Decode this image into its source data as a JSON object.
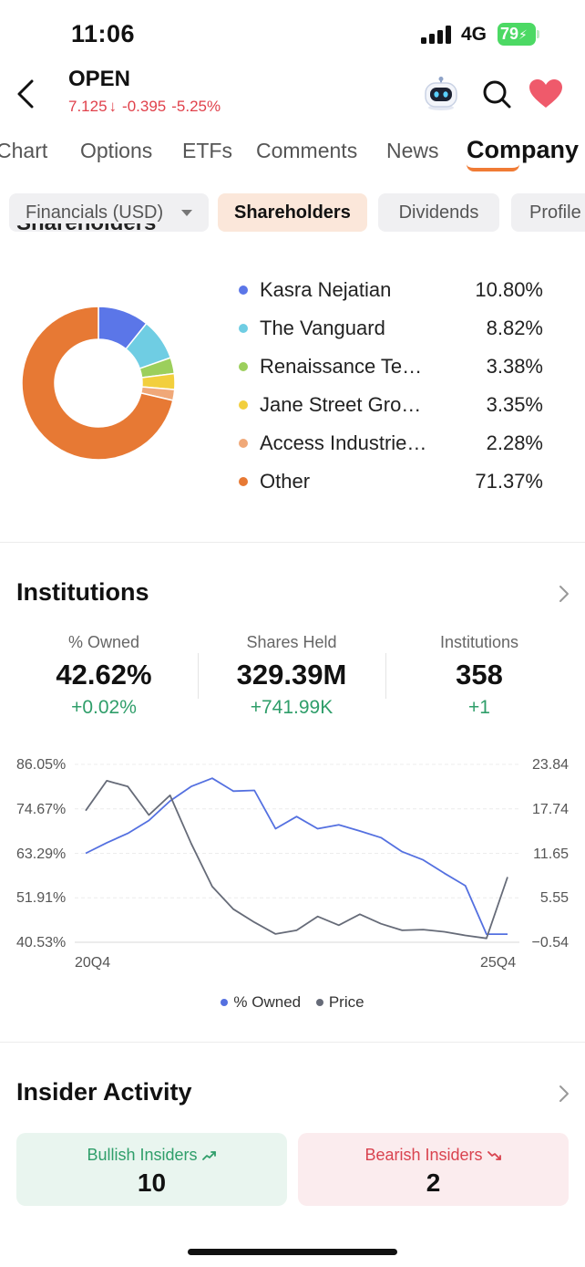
{
  "status_bar": {
    "time": "11:06",
    "network": "4G",
    "battery": "79"
  },
  "header": {
    "ticker": "OPEN",
    "price": "7.125",
    "arrow": "↓",
    "change": "-0.395",
    "change_pct": "-5.25%"
  },
  "tabs": [
    "Chart",
    "Options",
    "ETFs",
    "Comments",
    "News",
    "Company"
  ],
  "active_tab": "Company",
  "subtabs": {
    "financials": "Financials (USD)",
    "shareholders": "Shareholders",
    "dividends": "Dividends",
    "profile": "Profile"
  },
  "shareholders": {
    "heading": "Shareholders",
    "items": [
      {
        "name": "Kasra Nejatian",
        "pct": "10.80%",
        "value": 10.8,
        "color": "#5b76e8"
      },
      {
        "name": "The Vanguard",
        "pct": "8.82%",
        "value": 8.82,
        "color": "#6fcde3"
      },
      {
        "name": "Renaissance Te…",
        "pct": "3.38%",
        "value": 3.38,
        "color": "#9ccf5c"
      },
      {
        "name": "Jane Street Gro…",
        "pct": "3.35%",
        "value": 3.35,
        "color": "#f2cf3d"
      },
      {
        "name": "Access Industrie…",
        "pct": "2.28%",
        "value": 2.28,
        "color": "#f0a878"
      },
      {
        "name": "Other",
        "pct": "71.37%",
        "value": 71.37,
        "color": "#e77934"
      }
    ]
  },
  "institutions": {
    "title": "Institutions",
    "stats": [
      {
        "label": "% Owned",
        "value": "42.62%",
        "change": "+0.02%"
      },
      {
        "label": "Shares Held",
        "value": "329.39M",
        "change": "+741.99K"
      },
      {
        "label": "Institutions",
        "value": "358",
        "change": "+1"
      }
    ]
  },
  "chart_data": {
    "type": "line",
    "x_start": "20Q4",
    "x_end": "25Q4",
    "y_left_ticks": [
      "86.05%",
      "74.67%",
      "63.29%",
      "51.91%",
      "40.53%"
    ],
    "y_right_ticks": [
      "23.84",
      "17.74",
      "11.65",
      "5.55",
      "−0.54"
    ],
    "y_left_range": [
      40.53,
      86.05
    ],
    "y_right_range": [
      -0.54,
      23.84
    ],
    "series": [
      {
        "name": "% Owned",
        "color": "#5470e0",
        "axis": "left",
        "values": [
          63.3,
          66.0,
          68.4,
          71.7,
          76.7,
          80.4,
          82.5,
          79.2,
          79.4,
          69.6,
          72.7,
          69.6,
          70.6,
          69.0,
          67.3,
          63.7,
          61.6,
          58.2,
          55.0,
          42.6,
          42.6
        ]
      },
      {
        "name": "Price",
        "color": "#666b78",
        "axis": "right",
        "values": [
          17.5,
          21.6,
          20.8,
          16.9,
          19.6,
          13.0,
          7.1,
          4.0,
          2.2,
          0.6,
          1.1,
          3.0,
          1.8,
          3.3,
          2.0,
          1.1,
          1.2,
          0.9,
          0.4,
          0.0,
          8.4
        ]
      }
    ],
    "grid": true,
    "legend_position": "bottom-center"
  },
  "insider": {
    "title": "Insider Activity",
    "bullish_label": "Bullish Insiders",
    "bullish_count": "10",
    "bearish_label": "Bearish Insiders",
    "bearish_count": "2",
    "bullish_bg": "#e9f5ef",
    "bullish_color": "#2f9e6a",
    "bearish_bg": "#fbecee",
    "bearish_color": "#d9434f"
  }
}
